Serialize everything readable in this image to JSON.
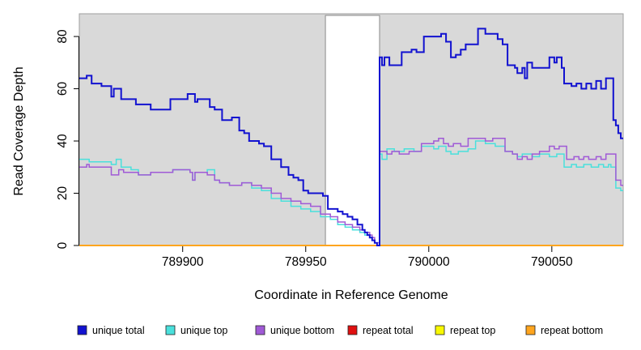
{
  "chart_data": {
    "type": "line",
    "subtype": "step",
    "title": "",
    "xlabel": "Coordinate in Reference Genome",
    "ylabel": "Read Coverage Depth",
    "xlim": [
      789858,
      790079
    ],
    "ylim": [
      0,
      88.7
    ],
    "xticks": [
      789900,
      789950,
      790000,
      790050
    ],
    "yticks": [
      0,
      20,
      40,
      60,
      80
    ],
    "grid": false,
    "legend_position": "bottom",
    "plot_background": "#d9d9d9",
    "plot_border_color": "#9e9e9e",
    "axis_color": "#000000",
    "highlight_region": {
      "start": 789958,
      "end": 789980,
      "fill": "#ffffff",
      "border": "#8a8a8a"
    },
    "draw_order": [
      3,
      4,
      5,
      1,
      2,
      0
    ],
    "series": [
      {
        "name": "unique total",
        "color": "#1212d0",
        "width": 2,
        "points": [
          [
            789858,
            64
          ],
          [
            789861,
            65
          ],
          [
            789863,
            62
          ],
          [
            789867,
            61
          ],
          [
            789871,
            57
          ],
          [
            789872,
            60
          ],
          [
            789875,
            56
          ],
          [
            789881,
            54
          ],
          [
            789887,
            52
          ],
          [
            789895,
            56
          ],
          [
            789902,
            58
          ],
          [
            789905,
            55
          ],
          [
            789906,
            56
          ],
          [
            789911,
            53
          ],
          [
            789913,
            52
          ],
          [
            789916,
            48
          ],
          [
            789920,
            49
          ],
          [
            789923,
            44
          ],
          [
            789925,
            43
          ],
          [
            789927,
            40
          ],
          [
            789931,
            39
          ],
          [
            789933,
            38
          ],
          [
            789936,
            33
          ],
          [
            789940,
            30
          ],
          [
            789943,
            27
          ],
          [
            789945,
            26
          ],
          [
            789947,
            25
          ],
          [
            789949,
            21
          ],
          [
            789951,
            20
          ],
          [
            789957,
            19
          ],
          [
            789959,
            14
          ],
          [
            789963,
            13
          ],
          [
            789965,
            12
          ],
          [
            789967,
            11
          ],
          [
            789969,
            10
          ],
          [
            789971,
            8
          ],
          [
            789973,
            6
          ],
          [
            789974,
            5
          ],
          [
            789975,
            4
          ],
          [
            789976,
            3
          ],
          [
            789977,
            2
          ],
          [
            789978,
            1
          ],
          [
            789979,
            0
          ],
          [
            789980,
            72
          ],
          [
            789981,
            69
          ],
          [
            789982,
            72
          ],
          [
            789984,
            69
          ],
          [
            789989,
            74
          ],
          [
            789993,
            75
          ],
          [
            789995,
            74
          ],
          [
            789998,
            80
          ],
          [
            790005,
            81
          ],
          [
            790007,
            78
          ],
          [
            790009,
            72
          ],
          [
            790011,
            73
          ],
          [
            790013,
            75
          ],
          [
            790015,
            77
          ],
          [
            790020,
            83
          ],
          [
            790023,
            81
          ],
          [
            790028,
            79
          ],
          [
            790030,
            77
          ],
          [
            790032,
            69
          ],
          [
            790035,
            68
          ],
          [
            790036,
            66
          ],
          [
            790038,
            68
          ],
          [
            790039,
            64
          ],
          [
            790040,
            70
          ],
          [
            790042,
            68
          ],
          [
            790049,
            72
          ],
          [
            790051,
            70
          ],
          [
            790052,
            72
          ],
          [
            790054,
            68
          ],
          [
            790055,
            62
          ],
          [
            790058,
            61
          ],
          [
            790060,
            62
          ],
          [
            790062,
            60
          ],
          [
            790064,
            62
          ],
          [
            790066,
            60
          ],
          [
            790068,
            63
          ],
          [
            790070,
            60
          ],
          [
            790072,
            64
          ],
          [
            790075,
            48
          ],
          [
            790076,
            46
          ],
          [
            790077,
            43
          ],
          [
            790078,
            41
          ]
        ]
      },
      {
        "name": "unique top",
        "color": "#4ae0dc",
        "width": 1.5,
        "points": [
          [
            789858,
            33
          ],
          [
            789862,
            32
          ],
          [
            789871,
            31
          ],
          [
            789873,
            33
          ],
          [
            789875,
            30
          ],
          [
            789879,
            29
          ],
          [
            789882,
            27
          ],
          [
            789887,
            28
          ],
          [
            789896,
            29
          ],
          [
            789903,
            28
          ],
          [
            789904,
            25
          ],
          [
            789905,
            28
          ],
          [
            789910,
            29
          ],
          [
            789913,
            25
          ],
          [
            789915,
            24
          ],
          [
            789919,
            23
          ],
          [
            789924,
            24
          ],
          [
            789928,
            22
          ],
          [
            789932,
            21
          ],
          [
            789936,
            18
          ],
          [
            789940,
            17
          ],
          [
            789944,
            15
          ],
          [
            789948,
            14
          ],
          [
            789952,
            13
          ],
          [
            789956,
            11
          ],
          [
            789960,
            10
          ],
          [
            789963,
            8
          ],
          [
            789966,
            7
          ],
          [
            789969,
            6
          ],
          [
            789972,
            5
          ],
          [
            789974,
            4
          ],
          [
            789976,
            3
          ],
          [
            789977,
            2
          ],
          [
            789978,
            1
          ],
          [
            789980,
            35
          ],
          [
            789981,
            33
          ],
          [
            789983,
            37
          ],
          [
            789986,
            36
          ],
          [
            789990,
            37
          ],
          [
            789994,
            36
          ],
          [
            789997,
            38
          ],
          [
            790002,
            37
          ],
          [
            790004,
            38
          ],
          [
            790007,
            36
          ],
          [
            790009,
            35
          ],
          [
            790012,
            36
          ],
          [
            790016,
            37
          ],
          [
            790019,
            40
          ],
          [
            790023,
            39
          ],
          [
            790027,
            38
          ],
          [
            790031,
            36
          ],
          [
            790034,
            35
          ],
          [
            790036,
            34
          ],
          [
            790038,
            35
          ],
          [
            790042,
            34
          ],
          [
            790045,
            35
          ],
          [
            790049,
            34
          ],
          [
            790052,
            35
          ],
          [
            790055,
            30
          ],
          [
            790058,
            31
          ],
          [
            790060,
            30
          ],
          [
            790063,
            31
          ],
          [
            790066,
            30
          ],
          [
            790069,
            31
          ],
          [
            790071,
            30
          ],
          [
            790073,
            31
          ],
          [
            790074,
            30
          ],
          [
            790076,
            22
          ],
          [
            790078,
            21
          ]
        ]
      },
      {
        "name": "unique bottom",
        "color": "#a05ad6",
        "width": 1.5,
        "points": [
          [
            789858,
            30
          ],
          [
            789861,
            31
          ],
          [
            789862,
            30
          ],
          [
            789871,
            27
          ],
          [
            789874,
            29
          ],
          [
            789876,
            28
          ],
          [
            789882,
            27
          ],
          [
            789887,
            28
          ],
          [
            789896,
            29
          ],
          [
            789903,
            28
          ],
          [
            789904,
            25
          ],
          [
            789905,
            28
          ],
          [
            789910,
            27
          ],
          [
            789913,
            25
          ],
          [
            789915,
            24
          ],
          [
            789919,
            23
          ],
          [
            789924,
            24
          ],
          [
            789928,
            23
          ],
          [
            789932,
            22
          ],
          [
            789936,
            20
          ],
          [
            789940,
            18
          ],
          [
            789944,
            17
          ],
          [
            789948,
            16
          ],
          [
            789952,
            15
          ],
          [
            789956,
            12
          ],
          [
            789960,
            11
          ],
          [
            789963,
            9
          ],
          [
            789966,
            8
          ],
          [
            789969,
            7
          ],
          [
            789972,
            6
          ],
          [
            789974,
            5
          ],
          [
            789976,
            4
          ],
          [
            789977,
            3
          ],
          [
            789978,
            1
          ],
          [
            789980,
            36
          ],
          [
            789983,
            35
          ],
          [
            789985,
            36
          ],
          [
            789988,
            35
          ],
          [
            789992,
            36
          ],
          [
            789997,
            39
          ],
          [
            790002,
            40
          ],
          [
            790004,
            41
          ],
          [
            790006,
            39
          ],
          [
            790008,
            38
          ],
          [
            790010,
            39
          ],
          [
            790013,
            38
          ],
          [
            790016,
            41
          ],
          [
            790023,
            40
          ],
          [
            790026,
            41
          ],
          [
            790031,
            36
          ],
          [
            790034,
            35
          ],
          [
            790036,
            33
          ],
          [
            790038,
            34
          ],
          [
            790040,
            33
          ],
          [
            790042,
            35
          ],
          [
            790045,
            36
          ],
          [
            790049,
            38
          ],
          [
            790051,
            37
          ],
          [
            790053,
            38
          ],
          [
            790056,
            33
          ],
          [
            790059,
            34
          ],
          [
            790061,
            33
          ],
          [
            790063,
            34
          ],
          [
            790065,
            33
          ],
          [
            790068,
            34
          ],
          [
            790070,
            33
          ],
          [
            790072,
            35
          ],
          [
            790076,
            25
          ],
          [
            790078,
            23
          ]
        ]
      },
      {
        "name": "repeat total",
        "color": "#e01010",
        "width": 1.5,
        "points": [
          [
            789858,
            0
          ]
        ]
      },
      {
        "name": "repeat top",
        "color": "#f8f800",
        "width": 1.5,
        "points": [
          [
            789858,
            0
          ]
        ]
      },
      {
        "name": "repeat bottom",
        "color": "#ffa51e",
        "width": 2,
        "points": [
          [
            789858,
            0
          ]
        ]
      }
    ]
  }
}
